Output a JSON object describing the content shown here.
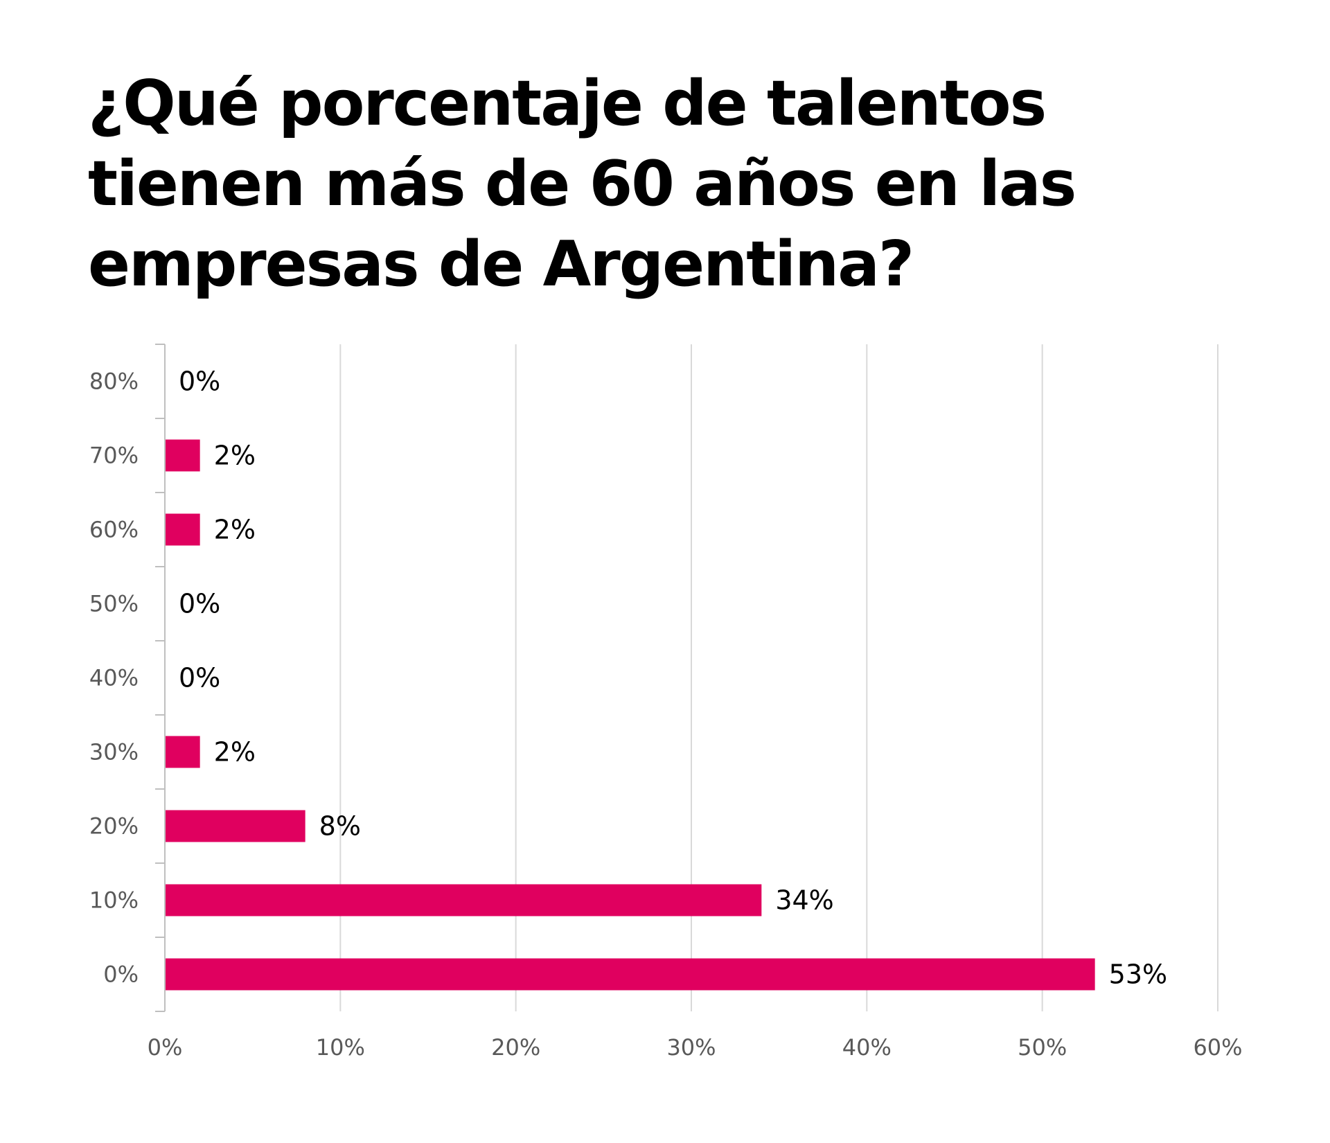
{
  "title_lines": [
    "¿Qué porcentaje de talentos",
    "tienen más de 60 años en las",
    "empresas de Argentina?"
  ],
  "chart_data": {
    "type": "bar",
    "orientation": "horizontal",
    "title": "¿Qué porcentaje de talentos tienen más de 60 años en las empresas de Argentina?",
    "categories": [
      "0%",
      "10%",
      "20%",
      "30%",
      "40%",
      "50%",
      "60%",
      "70%",
      "80%"
    ],
    "values": [
      53,
      34,
      8,
      2,
      0,
      0,
      2,
      2,
      0
    ],
    "data_labels": [
      "53%",
      "34%",
      "8%",
      "2%",
      "0%",
      "0%",
      "2%",
      "2%",
      "0%"
    ],
    "x_ticks": [
      "0%",
      "10%",
      "20%",
      "30%",
      "40%",
      "50%",
      "60%"
    ],
    "xlim": [
      0,
      60
    ],
    "xlabel": "",
    "ylabel": "",
    "grid": "vertical",
    "legend": "none",
    "colors": {
      "bar": "#E0005F",
      "grid": "#D9D9D9",
      "axis": "#BFBFBF",
      "tick_text": "#595959",
      "label_text": "#000000"
    }
  }
}
